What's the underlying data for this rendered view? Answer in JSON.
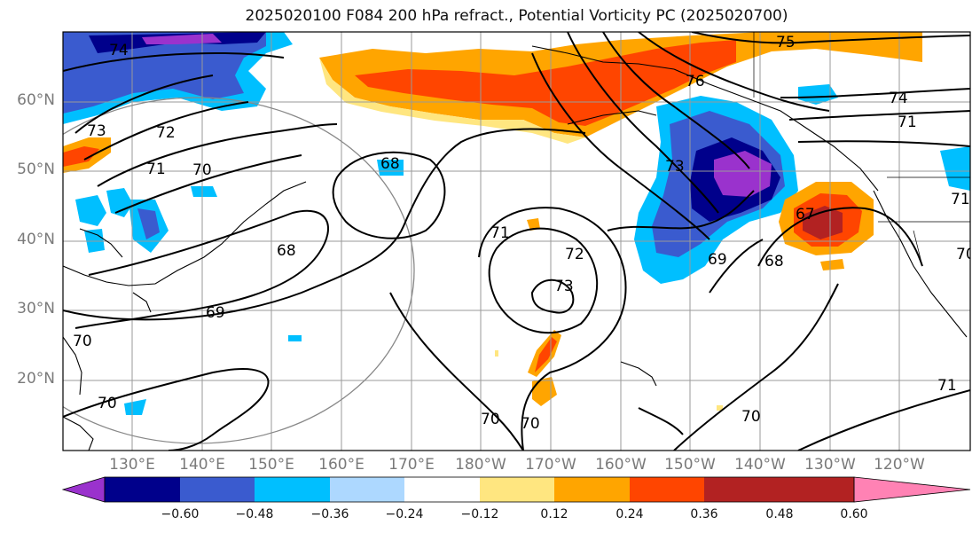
{
  "title": "2025020100 F084 200 hPa refract., Potential Vorticity PC (2025020700)",
  "axes": {
    "lat_labels": [
      "60°N",
      "50°N",
      "40°N",
      "30°N",
      "20°N"
    ],
    "lon_labels": [
      "130°E",
      "140°E",
      "150°E",
      "160°E",
      "170°E",
      "180°W",
      "170°W",
      "160°W",
      "150°W",
      "140°W",
      "130°W",
      "120°W"
    ]
  },
  "colorbar": {
    "ticks": [
      "−0.60",
      "−0.48",
      "−0.36",
      "−0.24",
      "−0.12",
      "0.12",
      "0.24",
      "0.36",
      "0.48",
      "0.60"
    ],
    "colors": [
      "#9a32cd",
      "#00008b",
      "#3a5bcf",
      "#00bfff",
      "#add8ff",
      "#ffffff",
      "#ffe680",
      "#ffa500",
      "#ff4500",
      "#b22222",
      "#ff82b4"
    ]
  },
  "contour_labels": [
    "74",
    "73",
    "72",
    "71",
    "70",
    "68",
    "68",
    "69",
    "70",
    "70",
    "71",
    "72",
    "73",
    "70",
    "70",
    "69",
    "68",
    "67",
    "76",
    "75",
    "74",
    "71",
    "73",
    "71",
    "70",
    "70",
    "71"
  ]
}
